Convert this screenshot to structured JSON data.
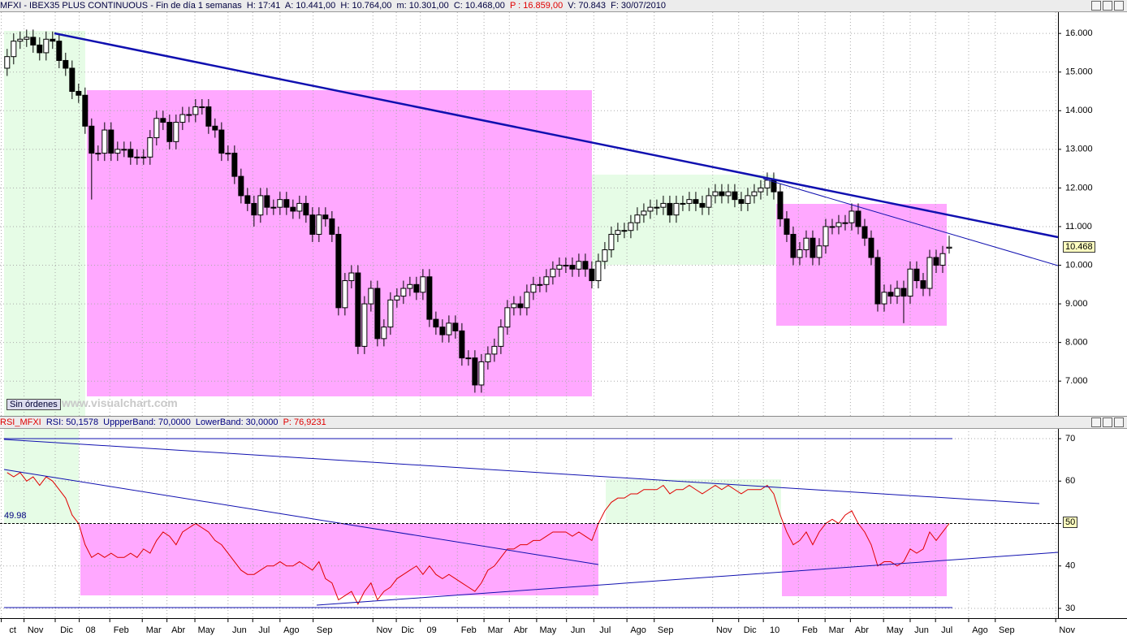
{
  "chart_data": [
    {
      "type": "candlestick",
      "header": "MFXI - IBEX35 PLUS CONTINUOUS - Fin de día 1 semanas  H: 17:41  A: 10.441,00  H: 10.764,00  m: 10.301,00  C: 10.468,00  ",
      "header_p": "P : 16.859,00",
      "header_end": "  V: 70.843  F: 30/07/2010",
      "last_price_label": "10.468",
      "xlim": [
        -1.1,
        161.75
      ],
      "xticks": [
        {
          "value": -0.9,
          "label": "ct"
        },
        {
          "value": 2.6,
          "label": "Nov"
        },
        {
          "value": 7.4,
          "label": "Dic"
        },
        {
          "value": 11.1,
          "label": "08"
        },
        {
          "value": 15.8,
          "label": "Feb"
        },
        {
          "value": 20.8,
          "label": "Mar"
        },
        {
          "value": 24.6,
          "label": "Abr"
        },
        {
          "value": 28.9,
          "label": "May"
        },
        {
          "value": 34,
          "label": "Jun"
        },
        {
          "value": 37.8,
          "label": "Jul"
        },
        {
          "value": 42,
          "label": "Ago"
        },
        {
          "value": 47.1,
          "label": "Sep"
        },
        {
          "value": 56.3,
          "label": "Nov"
        },
        {
          "value": 59.9,
          "label": "Dic"
        },
        {
          "value": 63.6,
          "label": "09"
        },
        {
          "value": 69.3,
          "label": "Feb"
        },
        {
          "value": 73.4,
          "label": "Mar"
        },
        {
          "value": 77.3,
          "label": "Abr"
        },
        {
          "value": 81.5,
          "label": "May"
        },
        {
          "value": 86.1,
          "label": "Jun"
        },
        {
          "value": 90.3,
          "label": "Jul"
        },
        {
          "value": 95.4,
          "label": "Ago"
        },
        {
          "value": 99.6,
          "label": "Sep"
        },
        {
          "value": 108.6,
          "label": "Nov"
        },
        {
          "value": 112.6,
          "label": "Dic"
        },
        {
          "value": 116.4,
          "label": "10"
        },
        {
          "value": 121.8,
          "label": "Feb"
        },
        {
          "value": 125.9,
          "label": "Mar"
        },
        {
          "value": 129.8,
          "label": "Abr"
        },
        {
          "value": 134.9,
          "label": "May"
        },
        {
          "value": 139,
          "label": "Jun"
        },
        {
          "value": 142.9,
          "label": "Jul"
        },
        {
          "value": 148,
          "label": "Ago"
        },
        {
          "value": 152.1,
          "label": "Sep"
        },
        {
          "value": 161.4,
          "label": "Nov"
        }
      ],
      "ylim": [
        6.1,
        16.55
      ],
      "yticks": [
        {
          "value": 7,
          "label": "7.000"
        },
        {
          "value": 8,
          "label": "8.000"
        },
        {
          "value": 9,
          "label": "9.000"
        },
        {
          "value": 10,
          "label": "10.000"
        },
        {
          "value": 11,
          "label": "11.000"
        },
        {
          "value": 12,
          "label": "12.000"
        },
        {
          "value": 13,
          "label": "13.000"
        },
        {
          "value": 14,
          "label": "14.000"
        },
        {
          "value": 15,
          "label": "15.000"
        },
        {
          "value": 16,
          "label": "16.000"
        }
      ],
      "grid": true,
      "up_color": "#ffffff",
      "down_color": "#000000",
      "candles": [
        [
          15.1,
          15.6,
          14.9,
          15.4
        ],
        [
          15.4,
          16.0,
          15.2,
          15.8
        ],
        [
          15.8,
          16.05,
          15.6,
          15.85
        ],
        [
          15.85,
          16.1,
          15.65,
          15.9
        ],
        [
          15.9,
          16.1,
          15.5,
          15.7
        ],
        [
          15.7,
          15.9,
          15.3,
          15.5
        ],
        [
          15.5,
          16.05,
          15.3,
          15.85
        ],
        [
          15.85,
          16.05,
          15.6,
          15.8
        ],
        [
          15.8,
          16.0,
          15.1,
          15.3
        ],
        [
          15.3,
          15.5,
          14.9,
          15.1
        ],
        [
          15.1,
          15.3,
          14.3,
          14.5
        ],
        [
          14.5,
          14.7,
          14.2,
          14.4
        ],
        [
          14.4,
          14.6,
          13.4,
          13.6
        ],
        [
          13.6,
          13.8,
          11.7,
          12.9
        ],
        [
          12.9,
          13.1,
          12.7,
          12.9
        ],
        [
          12.9,
          13.7,
          12.7,
          13.5
        ],
        [
          13.5,
          13.7,
          12.7,
          12.9
        ],
        [
          12.9,
          13.2,
          12.7,
          13.0
        ],
        [
          13.0,
          13.2,
          12.8,
          13.0
        ],
        [
          13.0,
          13.2,
          12.6,
          12.8
        ],
        [
          12.8,
          13.0,
          12.6,
          12.8
        ],
        [
          12.8,
          13.0,
          12.6,
          12.8
        ],
        [
          12.8,
          13.5,
          12.6,
          13.3
        ],
        [
          13.3,
          14.0,
          13.1,
          13.8
        ],
        [
          13.8,
          14.0,
          13.5,
          13.7
        ],
        [
          13.7,
          13.9,
          13.0,
          13.2
        ],
        [
          13.2,
          13.9,
          13.0,
          13.7
        ],
        [
          13.7,
          14.1,
          13.5,
          13.9
        ],
        [
          13.9,
          14.1,
          13.7,
          13.9
        ],
        [
          13.9,
          14.3,
          13.7,
          14.1
        ],
        [
          14.1,
          14.3,
          13.9,
          14.1
        ],
        [
          14.1,
          14.3,
          13.4,
          13.6
        ],
        [
          13.6,
          13.8,
          13.3,
          13.5
        ],
        [
          13.5,
          13.7,
          12.7,
          12.9
        ],
        [
          12.9,
          13.1,
          12.7,
          12.9
        ],
        [
          12.9,
          13.1,
          12.1,
          12.3
        ],
        [
          12.3,
          12.5,
          11.6,
          11.8
        ],
        [
          11.8,
          12.0,
          11.4,
          11.6
        ],
        [
          11.6,
          11.8,
          11.0,
          11.3
        ],
        [
          11.3,
          12.0,
          11.1,
          11.8
        ],
        [
          11.8,
          12.0,
          11.3,
          11.5
        ],
        [
          11.5,
          11.7,
          11.3,
          11.5
        ],
        [
          11.5,
          11.9,
          11.3,
          11.7
        ],
        [
          11.7,
          11.9,
          11.3,
          11.5
        ],
        [
          11.5,
          11.7,
          11.2,
          11.4
        ],
        [
          11.4,
          11.8,
          11.2,
          11.6
        ],
        [
          11.6,
          11.8,
          11.1,
          11.3
        ],
        [
          11.3,
          11.5,
          10.6,
          10.8
        ],
        [
          10.8,
          11.5,
          10.6,
          11.3
        ],
        [
          11.3,
          11.5,
          11.0,
          11.2
        ],
        [
          11.2,
          11.4,
          10.6,
          10.8
        ],
        [
          10.8,
          11.0,
          8.7,
          8.9
        ],
        [
          8.9,
          9.8,
          8.7,
          9.6
        ],
        [
          9.6,
          10.0,
          9.4,
          9.8
        ],
        [
          9.8,
          10.0,
          7.7,
          7.9
        ],
        [
          7.9,
          9.2,
          7.7,
          9.0
        ],
        [
          9.0,
          9.6,
          8.8,
          9.4
        ],
        [
          9.4,
          9.6,
          7.9,
          8.1
        ],
        [
          8.1,
          8.6,
          7.9,
          8.4
        ],
        [
          8.4,
          9.3,
          8.2,
          9.1
        ],
        [
          9.1,
          9.4,
          8.9,
          9.2
        ],
        [
          9.2,
          9.6,
          9.0,
          9.4
        ],
        [
          9.4,
          9.7,
          9.2,
          9.5
        ],
        [
          9.5,
          9.7,
          9.1,
          9.3
        ],
        [
          9.3,
          9.9,
          9.1,
          9.7
        ],
        [
          9.7,
          9.9,
          8.4,
          8.6
        ],
        [
          8.6,
          8.8,
          8.2,
          8.4
        ],
        [
          8.4,
          8.6,
          8.0,
          8.2
        ],
        [
          8.2,
          8.7,
          8.0,
          8.5
        ],
        [
          8.5,
          8.7,
          8.1,
          8.3
        ],
        [
          8.3,
          8.5,
          7.4,
          7.6
        ],
        [
          7.6,
          7.8,
          7.4,
          7.6
        ],
        [
          7.6,
          7.8,
          6.7,
          6.9
        ],
        [
          6.9,
          7.7,
          6.7,
          7.5
        ],
        [
          7.5,
          7.9,
          7.3,
          7.7
        ],
        [
          7.7,
          8.1,
          7.5,
          7.9
        ],
        [
          7.9,
          8.6,
          7.7,
          8.4
        ],
        [
          8.4,
          9.1,
          8.2,
          8.9
        ],
        [
          8.9,
          9.2,
          8.7,
          9.0
        ],
        [
          9.0,
          9.2,
          8.7,
          8.9
        ],
        [
          8.9,
          9.5,
          8.7,
          9.3
        ],
        [
          9.3,
          9.7,
          9.1,
          9.5
        ],
        [
          9.5,
          9.7,
          9.3,
          9.5
        ],
        [
          9.5,
          9.9,
          9.3,
          9.7
        ],
        [
          9.7,
          10.1,
          9.5,
          9.9
        ],
        [
          9.9,
          10.2,
          9.7,
          10.0
        ],
        [
          10.0,
          10.2,
          9.8,
          10.0
        ],
        [
          10.0,
          10.2,
          9.7,
          9.9
        ],
        [
          9.9,
          10.3,
          9.7,
          10.1
        ],
        [
          10.1,
          10.3,
          9.7,
          9.9
        ],
        [
          9.9,
          10.1,
          9.4,
          9.6
        ],
        [
          9.6,
          10.3,
          9.4,
          10.1
        ],
        [
          10.1,
          10.6,
          9.9,
          10.4
        ],
        [
          10.4,
          11.0,
          10.2,
          10.8
        ],
        [
          10.8,
          11.1,
          10.6,
          10.9
        ],
        [
          10.9,
          11.1,
          10.7,
          10.9
        ],
        [
          10.9,
          11.3,
          10.7,
          11.1
        ],
        [
          11.1,
          11.5,
          10.9,
          11.3
        ],
        [
          11.3,
          11.6,
          11.1,
          11.4
        ],
        [
          11.4,
          11.7,
          11.2,
          11.5
        ],
        [
          11.5,
          11.7,
          11.3,
          11.5
        ],
        [
          11.5,
          11.8,
          11.3,
          11.6
        ],
        [
          11.6,
          11.8,
          11.1,
          11.3
        ],
        [
          11.3,
          11.8,
          11.1,
          11.6
        ],
        [
          11.6,
          11.8,
          11.4,
          11.6
        ],
        [
          11.6,
          11.9,
          11.4,
          11.7
        ],
        [
          11.7,
          11.9,
          11.4,
          11.6
        ],
        [
          11.6,
          11.8,
          11.3,
          11.5
        ],
        [
          11.5,
          12.0,
          11.3,
          11.8
        ],
        [
          11.8,
          12.1,
          11.6,
          11.9
        ],
        [
          11.9,
          12.1,
          11.6,
          11.8
        ],
        [
          11.8,
          12.1,
          11.6,
          11.9
        ],
        [
          11.9,
          12.1,
          11.5,
          11.7
        ],
        [
          11.7,
          11.9,
          11.4,
          11.6
        ],
        [
          11.6,
          12.0,
          11.4,
          11.8
        ],
        [
          11.8,
          12.1,
          11.6,
          11.9
        ],
        [
          11.9,
          12.2,
          11.7,
          12.0
        ],
        [
          12.0,
          12.4,
          11.8,
          12.2
        ],
        [
          12.2,
          12.4,
          11.7,
          11.9
        ],
        [
          11.9,
          12.1,
          11.0,
          11.2
        ],
        [
          11.2,
          11.4,
          10.6,
          10.8
        ],
        [
          10.8,
          11.0,
          10.0,
          10.2
        ],
        [
          10.2,
          10.6,
          10.0,
          10.4
        ],
        [
          10.4,
          10.9,
          10.2,
          10.7
        ],
        [
          10.7,
          10.9,
          10.0,
          10.2
        ],
        [
          10.2,
          10.7,
          10.0,
          10.5
        ],
        [
          10.5,
          11.2,
          10.3,
          11.0
        ],
        [
          11.0,
          11.2,
          10.8,
          11.0
        ],
        [
          11.0,
          11.3,
          10.8,
          11.1
        ],
        [
          11.1,
          11.3,
          10.9,
          11.1
        ],
        [
          11.1,
          11.6,
          10.9,
          11.4
        ],
        [
          11.4,
          11.6,
          10.8,
          11.0
        ],
        [
          11.0,
          11.2,
          10.5,
          10.7
        ],
        [
          10.7,
          10.9,
          10.0,
          10.2
        ],
        [
          10.2,
          10.4,
          8.8,
          9.0
        ],
        [
          9.0,
          9.5,
          8.8,
          9.3
        ],
        [
          9.3,
          9.5,
          9.0,
          9.2
        ],
        [
          9.2,
          9.6,
          9.0,
          9.4
        ],
        [
          9.4,
          9.6,
          8.5,
          9.2
        ],
        [
          9.2,
          10.1,
          9.0,
          9.9
        ],
        [
          9.9,
          10.1,
          9.4,
          9.6
        ],
        [
          9.6,
          9.8,
          9.2,
          9.4
        ],
        [
          9.4,
          10.4,
          9.2,
          10.2
        ],
        [
          10.2,
          10.4,
          9.8,
          10.0
        ],
        [
          10.0,
          10.5,
          9.8,
          10.3
        ],
        [
          10.441,
          10.764,
          10.301,
          10.468
        ]
      ]
    },
    {
      "type": "line",
      "header": "RSI_MFXI  ",
      "header_rest": "RSI: 50,1578  UppperBand: 70,0000  LowerBand: 30,0000  ",
      "header_p": "P: 76,9231",
      "level_left_label": "49.98",
      "level_right_label": "50",
      "ylim": [
        27.7,
        72.5
      ],
      "yticks": [
        30,
        40,
        50,
        60,
        70
      ],
      "grid": true,
      "series": [
        {
          "color": "#e00000",
          "values": [
            62,
            61,
            62,
            60,
            61,
            59,
            61,
            60,
            58,
            56,
            52,
            50,
            45,
            42,
            43,
            42,
            43,
            42,
            42,
            43,
            42,
            44,
            43,
            46,
            48,
            47,
            45,
            48,
            49,
            50,
            49,
            48,
            46,
            45,
            43,
            41,
            39,
            38,
            38,
            39,
            40,
            40,
            41,
            40,
            40,
            41,
            40,
            39,
            41,
            37,
            36,
            32,
            33,
            34,
            31,
            34,
            36,
            32,
            34,
            35,
            37,
            38,
            39,
            40,
            38,
            40,
            38,
            37,
            38,
            37,
            36,
            35,
            34,
            36,
            39,
            40,
            42,
            44,
            44,
            45,
            45,
            46,
            46,
            47,
            48,
            48,
            48,
            47,
            48,
            47,
            46,
            50,
            53,
            55,
            56,
            56,
            57,
            57,
            58,
            58,
            58,
            59,
            57,
            58,
            58,
            59,
            58,
            57,
            58,
            59,
            58,
            59,
            58,
            57,
            58,
            58,
            58,
            59,
            57,
            52,
            48,
            45,
            46,
            48,
            45,
            48,
            50,
            51,
            50,
            52,
            53,
            50,
            48,
            45,
            40,
            41,
            41,
            40,
            41,
            44,
            43,
            44,
            48,
            46,
            48,
            50
          ]
        }
      ]
    }
  ],
  "ui": {
    "button": "Sin órdenes",
    "watermark": "www.visualchart.com"
  }
}
